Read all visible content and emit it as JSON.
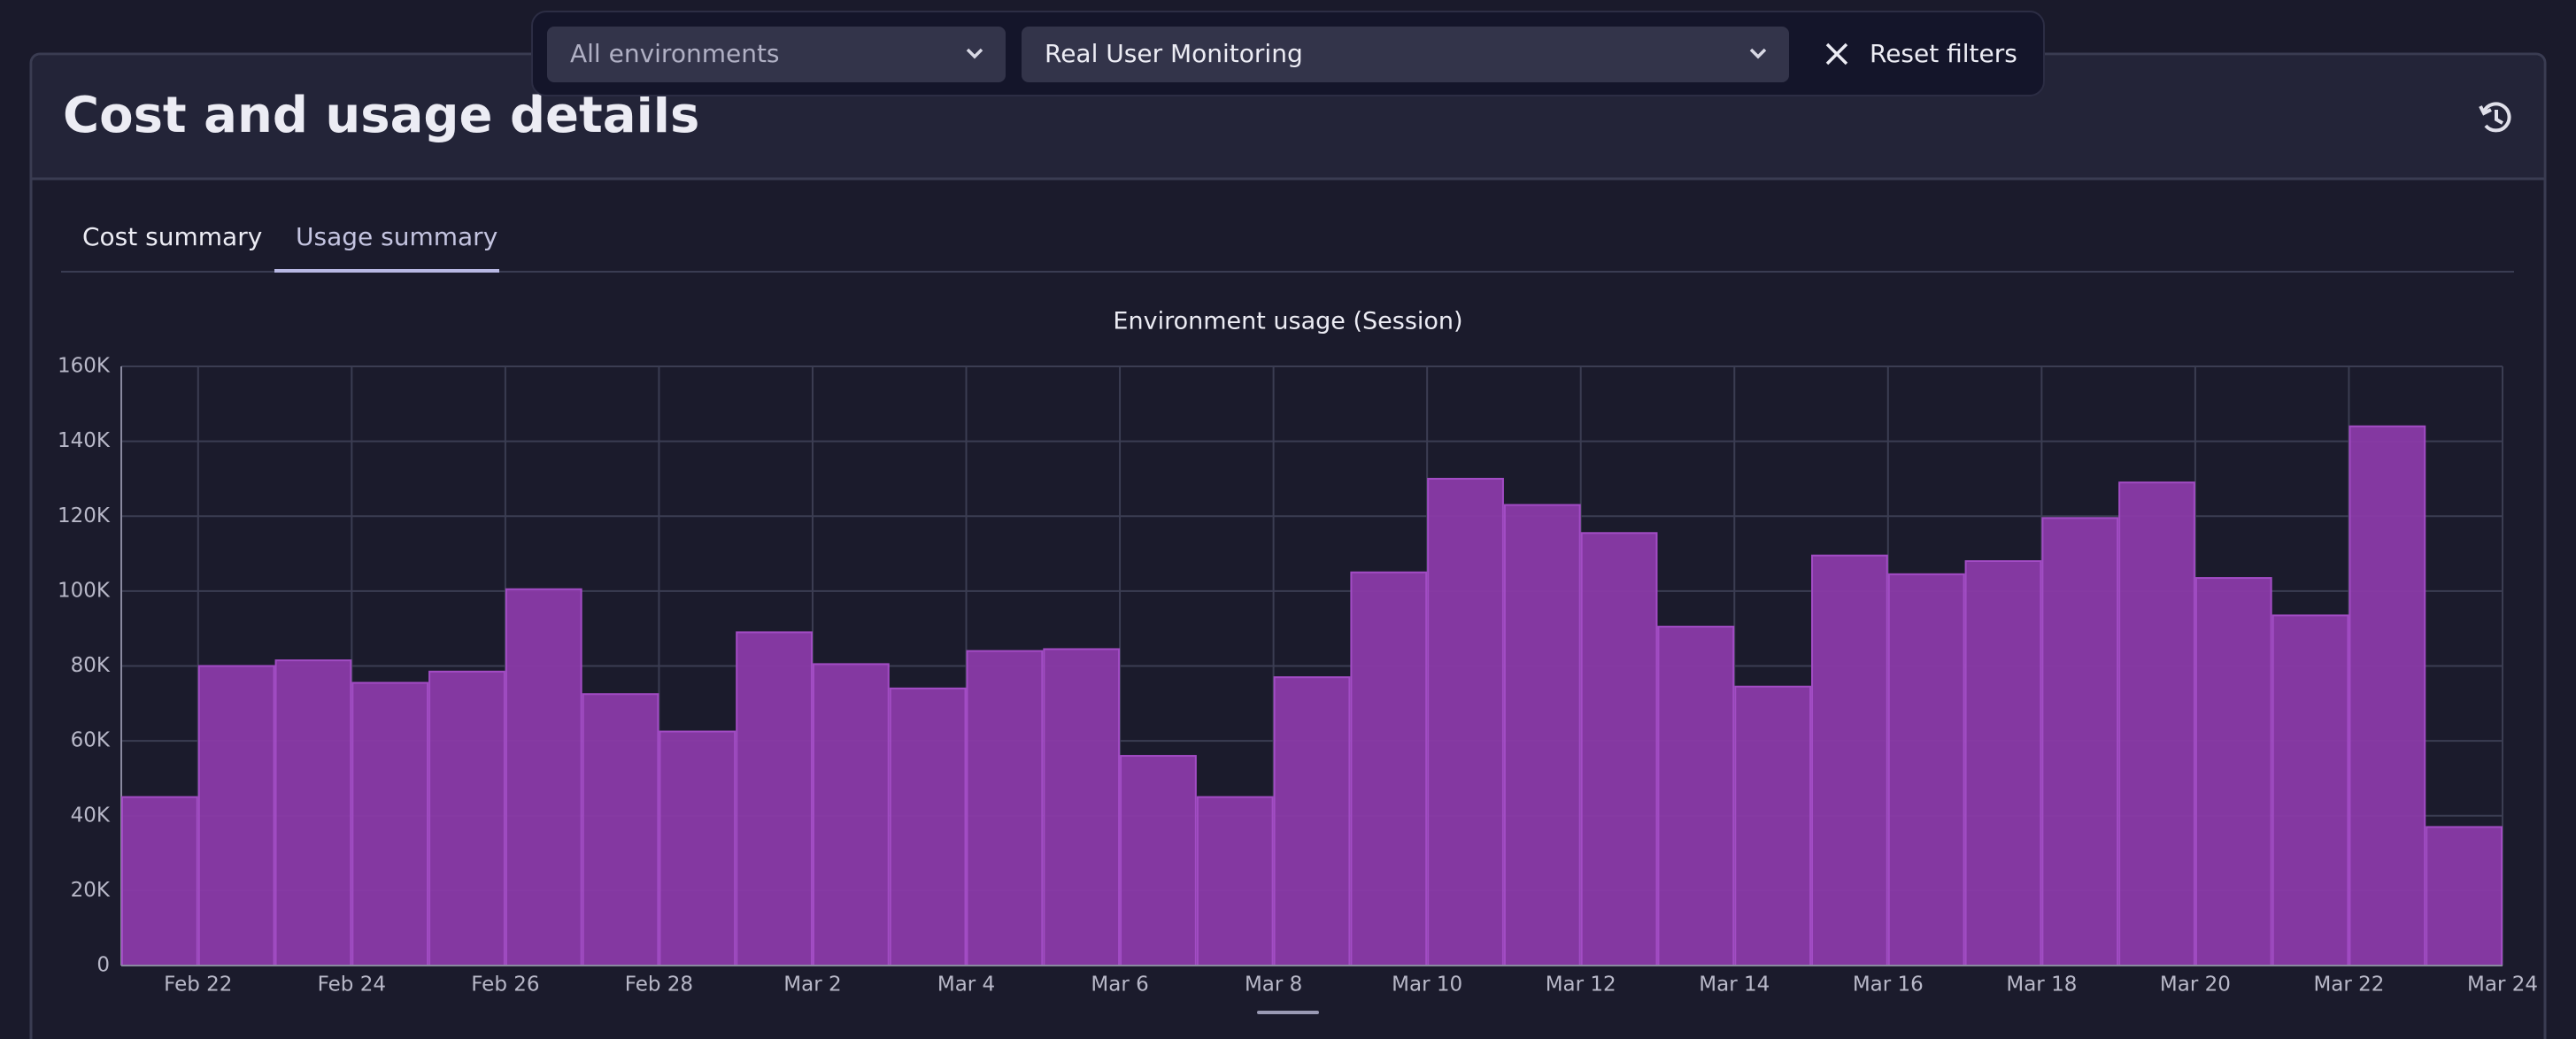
{
  "filters": {
    "environment": "All environments",
    "product": "Real User Monitoring",
    "reset": "Reset filters"
  },
  "header": {
    "title": "Cost and usage details"
  },
  "tabs": [
    "Cost summary",
    "Usage summary"
  ],
  "chart_data": {
    "type": "bar",
    "title": "Environment usage (Session)",
    "color": "#8a3aa8",
    "values": [
      45000,
      80000,
      81500,
      75500,
      78500,
      100500,
      72500,
      62500,
      89000,
      80500,
      74000,
      84000,
      84500,
      56000,
      45000,
      77000,
      105000,
      130000,
      123000,
      115500,
      90500,
      74500,
      109500,
      104500,
      108000,
      119500,
      129000,
      103500,
      93500,
      144000,
      37000
    ],
    "xlim": [
      0,
      31
    ],
    "xticks": [
      {
        "value": 1,
        "label": "Feb 22"
      },
      {
        "value": 3,
        "label": "Feb 24"
      },
      {
        "value": 5,
        "label": "Feb 26"
      },
      {
        "value": 7,
        "label": "Feb 28"
      },
      {
        "value": 9,
        "label": "Mar 2"
      },
      {
        "value": 11,
        "label": "Mar 4"
      },
      {
        "value": 13,
        "label": "Mar 6"
      },
      {
        "value": 15,
        "label": "Mar 8"
      },
      {
        "value": 17,
        "label": "Mar 10"
      },
      {
        "value": 19,
        "label": "Mar 12"
      },
      {
        "value": 21,
        "label": "Mar 14"
      },
      {
        "value": 23,
        "label": "Mar 16"
      },
      {
        "value": 25,
        "label": "Mar 18"
      },
      {
        "value": 27,
        "label": "Mar 20"
      },
      {
        "value": 29,
        "label": "Mar 22"
      },
      {
        "value": 31,
        "label": "Mar 24"
      }
    ],
    "ylim": [
      0,
      160000
    ],
    "yticks": [
      0,
      {
        "value": 20000,
        "label": "20K"
      },
      {
        "value": 40000,
        "label": "40K"
      },
      {
        "value": 60000,
        "label": "60K"
      },
      {
        "value": 80000,
        "label": "80K"
      },
      {
        "value": 100000,
        "label": "100K"
      },
      {
        "value": 120000,
        "label": "120K"
      },
      {
        "value": 140000,
        "label": "140K"
      },
      {
        "value": 160000,
        "label": "160K"
      }
    ],
    "grid": true
  }
}
